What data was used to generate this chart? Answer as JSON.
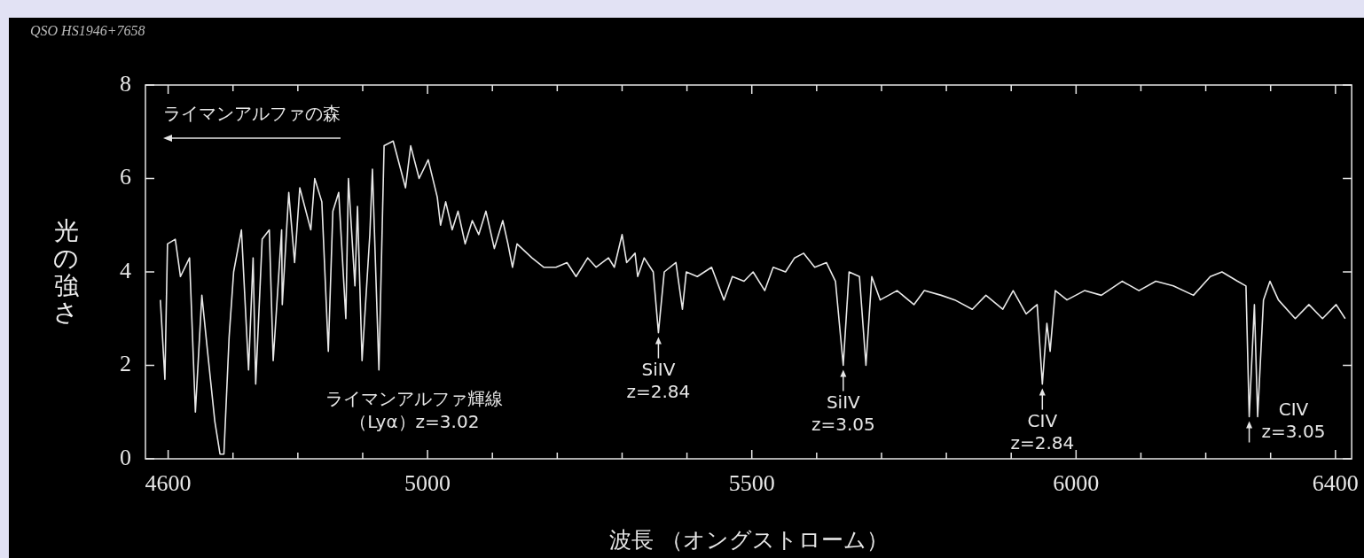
{
  "chart_data": {
    "type": "line",
    "title": "QSO HS1946+7658",
    "xlabel": "波長 （オングストローム）",
    "ylabel": "光の強さ",
    "x": [
      4588,
      4595,
      4599,
      4611,
      4619,
      4633,
      4642,
      4652,
      4660,
      4672,
      4680,
      4686,
      4694,
      4701,
      4713,
      4724,
      4731,
      4735,
      4745,
      4756,
      4762,
      4775,
      4776,
      4786,
      4795,
      4803,
      4820,
      4826,
      4837,
      4847,
      4854,
      4863,
      4874,
      4878,
      4888,
      4892,
      4899,
      4911,
      4915,
      4925,
      4933,
      4947,
      4966,
      4974,
      4987,
      5001,
      5015,
      5020,
      5028,
      5038,
      5047,
      5058,
      5069,
      5079,
      5090,
      5103,
      5116,
      5124,
      5131,
      5138,
      5161,
      5179,
      5198,
      5215,
      5229,
      5247,
      5260,
      5279,
      5288,
      5300,
      5307,
      5320,
      5324,
      5334,
      5348,
      5356,
      5365,
      5383,
      5393,
      5399,
      5416,
      5438,
      5457,
      5470,
      5488,
      5502,
      5520,
      5533,
      5552,
      5566,
      5580,
      5597,
      5615,
      5629,
      5641,
      5650,
      5666,
      5676,
      5685,
      5698,
      5724,
      5750,
      5766,
      5792,
      5813,
      5840,
      5861,
      5887,
      5903,
      5923,
      5940,
      5948,
      5955,
      5960,
      5968,
      5986,
      6013,
      6039,
      6071,
      6097,
      6123,
      6150,
      6181,
      6207,
      6225,
      6249,
      6262,
      6267,
      6275,
      6280,
      6289,
      6299,
      6312,
      6338,
      6359,
      6380,
      6401,
      6415
    ],
    "series": [
      {
        "color": "#e8e8e8",
        "values": [
          3.4,
          1.7,
          4.6,
          4.7,
          3.9,
          4.3,
          1.0,
          3.5,
          2.4,
          0.8,
          0.1,
          0.1,
          2.6,
          4.0,
          4.9,
          1.9,
          4.3,
          1.6,
          4.7,
          4.9,
          2.1,
          4.9,
          3.3,
          5.7,
          4.2,
          5.8,
          4.9,
          6.0,
          5.5,
          2.3,
          5.3,
          5.7,
          3.0,
          6.0,
          3.7,
          5.4,
          2.1,
          4.8,
          6.2,
          1.9,
          6.7,
          6.8,
          5.8,
          6.7,
          6.0,
          6.4,
          5.6,
          5.0,
          5.5,
          4.9,
          5.3,
          4.6,
          5.1,
          4.8,
          5.3,
          4.5,
          5.1,
          4.6,
          4.1,
          4.6,
          4.3,
          4.1,
          4.1,
          4.2,
          3.9,
          4.3,
          4.1,
          4.3,
          4.1,
          4.8,
          4.2,
          4.4,
          3.9,
          4.3,
          4.0,
          2.7,
          4.0,
          4.2,
          3.2,
          4.0,
          3.9,
          4.1,
          3.4,
          3.9,
          3.8,
          4.0,
          3.6,
          4.1,
          4.0,
          4.3,
          4.4,
          4.1,
          4.2,
          3.8,
          2.0,
          4.0,
          3.9,
          2.0,
          3.9,
          3.4,
          3.6,
          3.3,
          3.6,
          3.5,
          3.4,
          3.2,
          3.5,
          3.2,
          3.6,
          3.1,
          3.3,
          1.6,
          2.9,
          2.3,
          3.6,
          3.4,
          3.6,
          3.5,
          3.8,
          3.6,
          3.8,
          3.7,
          3.5,
          3.9,
          4.0,
          3.8,
          3.7,
          0.9,
          3.3,
          0.9,
          3.4,
          3.8,
          3.4,
          3.0,
          3.3,
          3.0,
          3.3,
          3.0
        ]
      }
    ],
    "xlim": [
      4565,
      6425
    ],
    "ylim": [
      0,
      8
    ],
    "xticks": [
      4600,
      {
        "value": 4700,
        "label": null
      },
      {
        "value": 4800,
        "label": null
      },
      {
        "value": 4900,
        "label": null
      },
      5000,
      {
        "value": 5100,
        "label": null
      },
      {
        "value": 5200,
        "label": null
      },
      {
        "value": 5300,
        "label": null
      },
      {
        "value": 5400,
        "label": null
      },
      5500,
      {
        "value": 5600,
        "label": null
      },
      {
        "value": 5700,
        "label": null
      },
      {
        "value": 5800,
        "label": null
      },
      {
        "value": 5900,
        "label": null
      },
      6000,
      {
        "value": 6100,
        "label": null
      },
      {
        "value": 6200,
        "label": null
      },
      {
        "value": 6300,
        "label": null
      },
      6400
    ],
    "yticks": [
      0,
      2,
      4,
      6,
      8
    ],
    "annotations": [
      "ライマンアルファの森",
      "ライマンアルファ輝線（Lyα）z=3.02",
      {
        "text": "SiIV z=2.84",
        "x": 5356,
        "y": 2.7
      },
      {
        "text": "SiIV z=3.05",
        "x": 5641,
        "y": 2.0
      },
      {
        "text": "CIV z=2.84",
        "x": 5948,
        "y": 1.6
      },
      {
        "text": "CIV z=3.05",
        "x": 6267,
        "y": 0.9
      }
    ]
  }
}
